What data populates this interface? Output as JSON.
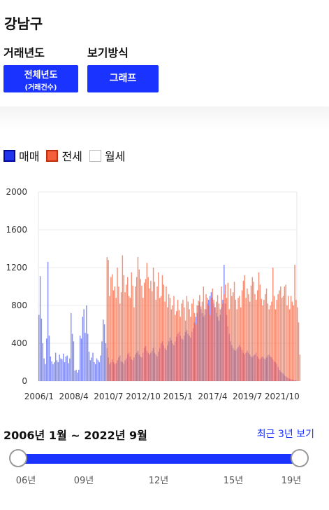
{
  "header": {
    "district": "강남구"
  },
  "controls": {
    "year_label": "거래년도",
    "year_value": "전체년도",
    "year_sub": "(거래건수)",
    "view_label": "보기방식",
    "view_value": "그래프"
  },
  "legend": [
    {
      "label": "매매",
      "color": "#2233ee"
    },
    {
      "label": "전세",
      "color": "#f4603c"
    },
    {
      "label": "월세",
      "color": "#ffffff"
    }
  ],
  "range": {
    "text": "2006년 1월 ~ 2022년 9월",
    "recent_button": "최근 3년 보기"
  },
  "slider": {
    "ticks": [
      "06년",
      "09년",
      "12년",
      "15년",
      "19년"
    ],
    "start": "06년",
    "end": "19년"
  },
  "chart_data": {
    "type": "bar",
    "ylim": [
      0,
      2000
    ],
    "yticks": [
      0,
      400,
      800,
      1200,
      1600,
      2000
    ],
    "xticks": [
      "2006/1",
      "2008/4",
      "2010/7",
      "2012/10",
      "2015/1",
      "2017/4",
      "2019/7",
      "2021/10"
    ],
    "start": "2006/1",
    "months": 201,
    "series": [
      {
        "name": "매매",
        "color": "#2233ee",
        "values": [
          700,
          1110,
          660,
          400,
          240,
          180,
          450,
          1260,
          480,
          260,
          210,
          180,
          200,
          300,
          220,
          200,
          280,
          240,
          230,
          290,
          200,
          260,
          270,
          190,
          240,
          720,
          500,
          420,
          110,
          120,
          90,
          120,
          480,
          450,
          680,
          760,
          510,
          800,
          500,
          310,
          220,
          250,
          300,
          200,
          180,
          240,
          220,
          200,
          270,
          420,
          650,
          600,
          400,
          350,
          250,
          180,
          200,
          230,
          200,
          180,
          190,
          220,
          250,
          270,
          210,
          200,
          180,
          220,
          240,
          280,
          300,
          260,
          230,
          220,
          250,
          280,
          300,
          320,
          280,
          260,
          250,
          300,
          350,
          370,
          320,
          300,
          280,
          300,
          320,
          350,
          300,
          280,
          260,
          310,
          350,
          400,
          420,
          380,
          350,
          330,
          380,
          420,
          460,
          430,
          400,
          380,
          420,
          470,
          500,
          520,
          480,
          450,
          440,
          480,
          520,
          540,
          500,
          480,
          460,
          520,
          560,
          620,
          680,
          720,
          800,
          840,
          760,
          720,
          680,
          700,
          760,
          820,
          860,
          900,
          940,
          880,
          820,
          780,
          720,
          680,
          640,
          700,
          780,
          860,
          1230,
          820,
          700,
          580,
          500,
          420,
          380,
          350,
          330,
          320,
          340,
          360,
          380,
          360,
          330,
          300,
          280,
          300,
          320,
          300,
          280,
          260,
          250,
          270,
          280,
          300,
          260,
          240,
          230,
          250,
          260,
          240,
          230,
          250,
          270,
          280,
          260,
          250,
          230,
          210,
          200,
          180,
          150,
          120,
          100,
          90,
          80,
          60,
          50,
          40,
          30,
          25,
          20,
          15,
          12,
          10,
          8
        ]
      },
      {
        "name": "전세",
        "color": "#f4603c",
        "values": [
          0,
          0,
          0,
          0,
          0,
          0,
          0,
          0,
          0,
          0,
          0,
          0,
          0,
          0,
          0,
          0,
          0,
          0,
          0,
          0,
          0,
          0,
          0,
          0,
          0,
          0,
          0,
          0,
          0,
          0,
          0,
          0,
          0,
          0,
          0,
          0,
          0,
          0,
          0,
          0,
          0,
          0,
          0,
          0,
          0,
          0,
          0,
          0,
          0,
          0,
          0,
          0,
          0,
          1310,
          1280,
          900,
          1100,
          1130,
          960,
          1000,
          880,
          1200,
          1000,
          820,
          940,
          1330,
          1120,
          940,
          1020,
          1100,
          900,
          880,
          1150,
          1010,
          780,
          1000,
          1100,
          1310,
          1180,
          1080,
          1010,
          880,
          1040,
          1080,
          1250,
          1100,
          980,
          1060,
          950,
          1200,
          1050,
          860,
          1000,
          1150,
          880,
          900,
          1120,
          1020,
          840,
          1000,
          780,
          920,
          880,
          760,
          800,
          900,
          700,
          740,
          860,
          750,
          680,
          820,
          860,
          780,
          640,
          900,
          840,
          760,
          680,
          820,
          870,
          720,
          600,
          800,
          850,
          910,
          790,
          840,
          1000,
          760,
          920,
          880,
          800,
          700,
          880,
          980,
          860,
          780,
          840,
          910,
          820,
          760,
          1000,
          820,
          920,
          1020,
          880,
          1040,
          760,
          980,
          900,
          940,
          1050,
          860,
          760,
          880,
          900,
          780,
          960,
          1060,
          1120,
          880,
          980,
          920,
          840,
          1010,
          1100,
          1050,
          920,
          860,
          960,
          1150,
          1020,
          870,
          800,
          860,
          920,
          980,
          820,
          760,
          800,
          840,
          1200,
          900,
          760,
          860,
          920,
          960,
          1000,
          880,
          900,
          1000,
          1020,
          800,
          900,
          760,
          900,
          840,
          800,
          1230,
          860,
          780,
          620,
          280
        ]
      }
    ]
  }
}
